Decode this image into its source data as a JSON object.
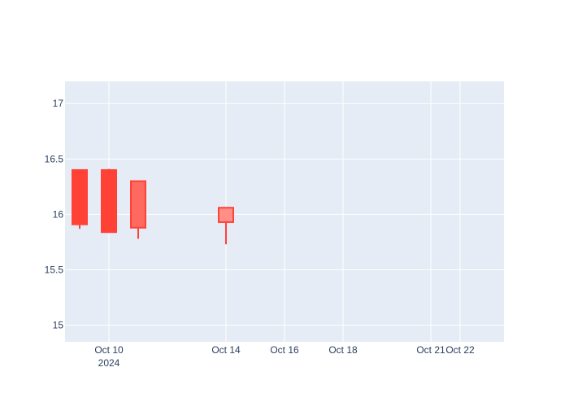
{
  "chart_data": {
    "type": "candlestick",
    "title": "",
    "xlabel": "",
    "ylabel": "",
    "ylim": [
      14.85,
      17.2
    ],
    "xlim": [
      "2024-10-08 12:00",
      "2024-10-23 12:00"
    ],
    "grid": true,
    "legend": "none",
    "yticks": [
      {
        "value": 15,
        "label": "15"
      },
      {
        "value": 15.5,
        "label": "15.5"
      },
      {
        "value": 16,
        "label": "16"
      },
      {
        "value": 16.5,
        "label": "16.5"
      },
      {
        "value": 17,
        "label": "17"
      }
    ],
    "xticks": [
      {
        "value": "2024-10-10",
        "label": "Oct 10",
        "sublabel": "2024"
      },
      {
        "value": "2024-10-14",
        "label": "Oct 14",
        "sublabel": ""
      },
      {
        "value": "2024-10-16",
        "label": "Oct 16",
        "sublabel": ""
      },
      {
        "value": "2024-10-18",
        "label": "Oct 18",
        "sublabel": ""
      },
      {
        "value": "2024-10-21",
        "label": "Oct 21",
        "sublabel": ""
      },
      {
        "value": "2024-10-22",
        "label": "Oct 22",
        "sublabel": ""
      }
    ],
    "candles": [
      {
        "date": "2024-10-09",
        "open": 16.4,
        "high": 16.4,
        "low": 15.87,
        "close": 15.91,
        "color": "#ff4136",
        "fill": "#ff4136"
      },
      {
        "date": "2024-10-10",
        "open": 16.4,
        "high": 16.41,
        "low": 15.84,
        "close": 15.84,
        "color": "#ff4136",
        "fill": "#ff4136"
      },
      {
        "date": "2024-10-11",
        "open": 16.3,
        "high": 16.3,
        "low": 15.78,
        "close": 15.88,
        "color": "#ff4136",
        "fill": "#ff6a60"
      },
      {
        "date": "2024-10-14",
        "open": 16.06,
        "high": 16.06,
        "low": 15.73,
        "close": 15.93,
        "color": "#ff4136",
        "fill": "#ff8f87"
      }
    ],
    "colors": {
      "plot_bg": "#e5ecf6",
      "grid": "#ffffff",
      "tick_text": "#2a3f5f",
      "decreasing": "#ff4136"
    }
  }
}
